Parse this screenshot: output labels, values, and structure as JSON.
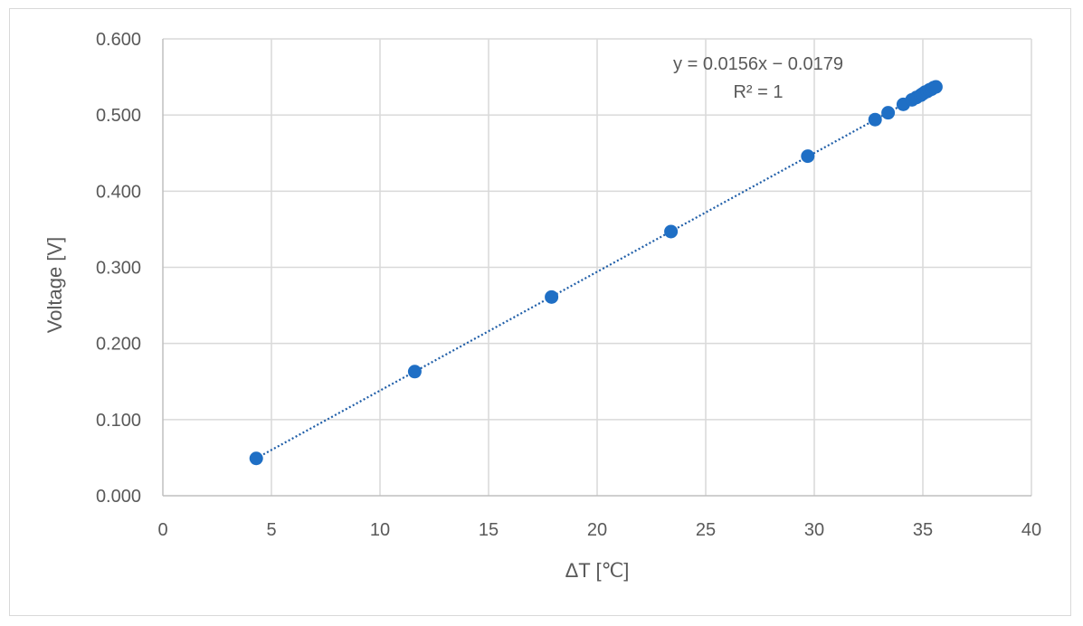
{
  "chart_data": {
    "type": "scatter",
    "title": "",
    "xlabel": "ΔT [℃]",
    "ylabel": "Voltage  [V]",
    "xlim": [
      0,
      40
    ],
    "ylim": [
      0,
      0.6
    ],
    "x_ticks": [
      0,
      5,
      10,
      15,
      20,
      25,
      30,
      35,
      40
    ],
    "x_tick_labels": [
      "0",
      "5",
      "10",
      "15",
      "20",
      "25",
      "30",
      "35",
      "40"
    ],
    "y_ticks": [
      0,
      0.1,
      0.2,
      0.3,
      0.4,
      0.5,
      0.6
    ],
    "y_tick_labels": [
      "0.000",
      "0.100",
      "0.200",
      "0.300",
      "0.400",
      "0.500",
      "0.600"
    ],
    "grid": true,
    "legend": "none",
    "series": [
      {
        "color": "#1f6fc5",
        "points": [
          {
            "x": 4.3,
            "y": 0.049
          },
          {
            "x": 11.6,
            "y": 0.163
          },
          {
            "x": 17.9,
            "y": 0.261
          },
          {
            "x": 23.4,
            "y": 0.347
          },
          {
            "x": 29.7,
            "y": 0.446
          },
          {
            "x": 32.8,
            "y": 0.494
          },
          {
            "x": 33.4,
            "y": 0.503
          },
          {
            "x": 34.1,
            "y": 0.514
          },
          {
            "x": 34.5,
            "y": 0.52
          },
          {
            "x": 34.7,
            "y": 0.523
          },
          {
            "x": 34.9,
            "y": 0.526
          },
          {
            "x": 35.0,
            "y": 0.528
          },
          {
            "x": 35.1,
            "y": 0.53
          },
          {
            "x": 35.2,
            "y": 0.531
          },
          {
            "x": 35.3,
            "y": 0.533
          },
          {
            "x": 35.4,
            "y": 0.534
          },
          {
            "x": 35.5,
            "y": 0.536
          },
          {
            "x": 35.6,
            "y": 0.537
          }
        ]
      }
    ],
    "trendline": {
      "type": "linear",
      "slope": 0.0156,
      "intercept": -0.0179,
      "x_range": [
        4.3,
        35.6
      ],
      "color": "#1f5ea8",
      "style": "dotted",
      "equation_text": "y = 0.0156x − 0.0179",
      "r2_text": "R² = 1"
    }
  }
}
